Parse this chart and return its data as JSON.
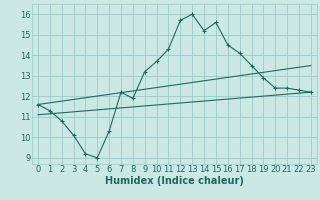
{
  "xlabel": "Humidex (Indice chaleur)",
  "background_color": "#cce8e5",
  "grid_color": "#99ccc8",
  "line_color": "#1a6b5e",
  "xlim": [
    -0.5,
    23.5
  ],
  "ylim": [
    8.7,
    16.5
  ],
  "yticks": [
    9,
    10,
    11,
    12,
    13,
    14,
    15,
    16
  ],
  "xticks": [
    0,
    1,
    2,
    3,
    4,
    5,
    6,
    7,
    8,
    9,
    10,
    11,
    12,
    13,
    14,
    15,
    16,
    17,
    18,
    19,
    20,
    21,
    22,
    23
  ],
  "series1_x": [
    0,
    1,
    2,
    3,
    4,
    5,
    6,
    7,
    8,
    9,
    10,
    11,
    12,
    13,
    14,
    15,
    16,
    17,
    18,
    19,
    20,
    21,
    22,
    23
  ],
  "series1_y": [
    11.6,
    11.3,
    10.8,
    10.1,
    9.2,
    9.0,
    10.3,
    12.2,
    11.9,
    13.2,
    13.7,
    14.3,
    15.7,
    16.0,
    15.2,
    15.6,
    14.5,
    14.1,
    13.5,
    12.9,
    12.4,
    12.4,
    12.3,
    12.2
  ],
  "series2_x": [
    0,
    23
  ],
  "series2_y": [
    11.6,
    13.5
  ],
  "series3_x": [
    0,
    23
  ],
  "series3_y": [
    11.1,
    12.2
  ],
  "xlabel_fontsize": 7,
  "tick_fontsize": 6
}
